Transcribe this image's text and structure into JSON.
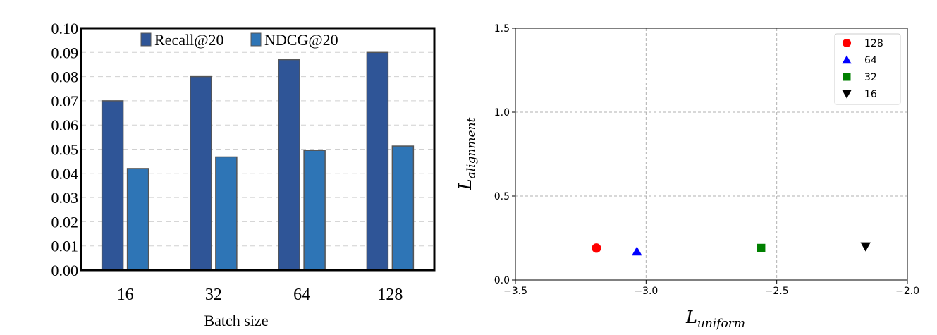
{
  "chart_data": [
    {
      "type": "bar",
      "title": "",
      "xlabel": "Batch size",
      "ylabel": "",
      "categories": [
        "16",
        "32",
        "64",
        "128"
      ],
      "series": [
        {
          "name": "Recall@20",
          "values": [
            0.07,
            0.08,
            0.087,
            0.09
          ]
        },
        {
          "name": "NDCG@20",
          "values": [
            0.042,
            0.0468,
            0.0495,
            0.0513
          ]
        }
      ],
      "ylim": [
        0.0,
        0.1
      ],
      "yticks": [
        "0.00",
        "0.01",
        "0.02",
        "0.03",
        "0.04",
        "0.05",
        "0.06",
        "0.07",
        "0.08",
        "0.09",
        "0.10"
      ],
      "grid": "horizontal dashed",
      "legend": "top-center",
      "colors": {
        "Recall@20": "#2f5597",
        "NDCG@20": "#2e75b6"
      }
    },
    {
      "type": "scatter",
      "title": "",
      "xlabel_main": "L",
      "xlabel_sub": "uniform",
      "ylabel_main": "L",
      "ylabel_sub": "alignment",
      "xlim": [
        -3.5,
        -2.0
      ],
      "ylim": [
        0.0,
        1.5
      ],
      "xticks": [
        "−3.5",
        "−3.0",
        "−2.5",
        "−2.0"
      ],
      "xtick_values": [
        -3.5,
        -3.0,
        -2.5,
        -2.0
      ],
      "yticks": [
        "0.0",
        "0.5",
        "1.0",
        "1.5"
      ],
      "ytick_values": [
        0.0,
        0.5,
        1.0,
        1.5
      ],
      "grid": "dashed",
      "legend": "top-right",
      "series": [
        {
          "name": "128",
          "x": -3.19,
          "y": 0.19,
          "marker": "circle",
          "color": "#ff0000"
        },
        {
          "name": "64",
          "x": -3.035,
          "y": 0.17,
          "marker": "triangle-up",
          "color": "#0000ff"
        },
        {
          "name": "32",
          "x": -2.56,
          "y": 0.19,
          "marker": "square",
          "color": "#008000"
        },
        {
          "name": "16",
          "x": -2.16,
          "y": 0.2,
          "marker": "triangle-down",
          "color": "#000000"
        }
      ]
    }
  ]
}
